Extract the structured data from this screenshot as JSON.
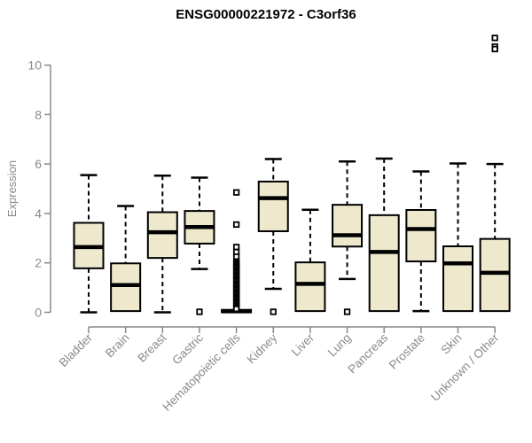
{
  "title": "ENSG00000221972 - C3orf36",
  "colors": {
    "box_fill": "#EEE8CD",
    "box_stroke": "#000000",
    "median": "#000000",
    "whisker": "#000000",
    "axis": "#888888",
    "axis_text": "#8a8a8a",
    "title_text": "#000000",
    "background": "#ffffff"
  },
  "chart_data": {
    "type": "boxplot",
    "title": "ENSG00000221972 - C3orf36",
    "xlabel": "",
    "ylabel": "Expression",
    "ylim": [
      0,
      11.5
    ],
    "yticks": [
      0,
      2,
      4,
      6,
      8,
      10
    ],
    "grid": false,
    "legend": false,
    "categories": [
      "Bladder",
      "Brain",
      "Breast",
      "Gastric",
      "Hematopoietic cells",
      "Kidney",
      "Liver",
      "Lung",
      "Pancreas",
      "Prostate",
      "Skin",
      "Unknown / Other"
    ],
    "series": [
      {
        "category": "Bladder",
        "low": 0,
        "q1": 1.78,
        "median": 2.64,
        "q3": 3.62,
        "high": 5.55,
        "outliers": []
      },
      {
        "category": "Brain",
        "low": 0,
        "q1": 0.05,
        "median": 1.1,
        "q3": 1.98,
        "high": 4.3,
        "outliers": []
      },
      {
        "category": "Breast",
        "low": 0,
        "q1": 2.2,
        "median": 3.24,
        "q3": 4.05,
        "high": 5.53,
        "outliers": []
      },
      {
        "category": "Gastric",
        "low": 1.75,
        "q1": 2.78,
        "median": 3.45,
        "q3": 4.1,
        "high": 5.45,
        "outliers": [
          0.02
        ]
      },
      {
        "category": "Hematopoietic cells",
        "low": 0,
        "q1": 0,
        "median": 0.04,
        "q3": 0.1,
        "high": 0.15,
        "outliers": [
          4.85,
          3.55,
          2.64,
          2.44,
          2.25,
          2.05,
          1.99,
          1.93,
          1.87,
          1.81,
          1.75,
          1.69,
          1.63,
          1.57,
          1.51,
          1.45,
          1.39,
          1.33,
          1.27,
          1.21,
          1.15,
          1.09,
          1.03,
          0.97,
          0.91,
          0.85,
          0.79,
          0.73,
          0.67,
          0.61,
          0.55,
          0.49,
          0.43,
          0.37,
          0.31,
          0.25,
          0.19,
          0.14
        ]
      },
      {
        "category": "Kidney",
        "low": 0.95,
        "q1": 3.28,
        "median": 4.62,
        "q3": 5.29,
        "high": 6.2,
        "outliers": [
          0.02
        ]
      },
      {
        "category": "Liver",
        "low": 0,
        "q1": 0.05,
        "median": 1.15,
        "q3": 2.02,
        "high": 4.15,
        "outliers": []
      },
      {
        "category": "Lung",
        "low": 1.35,
        "q1": 2.66,
        "median": 3.12,
        "q3": 4.35,
        "high": 6.1,
        "outliers": [
          0.02
        ]
      },
      {
        "category": "Pancreas",
        "low": 0,
        "q1": 0.05,
        "median": 2.44,
        "q3": 3.93,
        "high": 6.22,
        "outliers": []
      },
      {
        "category": "Prostate",
        "low": 0.05,
        "q1": 2.06,
        "median": 3.37,
        "q3": 4.14,
        "high": 5.7,
        "outliers": []
      },
      {
        "category": "Skin",
        "low": 0,
        "q1": 0.05,
        "median": 1.98,
        "q3": 2.67,
        "high": 6.02,
        "outliers": []
      },
      {
        "category": "Unknown / Other",
        "low": 0,
        "q1": 0.05,
        "median": 1.6,
        "q3": 2.97,
        "high": 6.0,
        "outliers": [
          11.1,
          10.75,
          10.65
        ]
      }
    ]
  }
}
